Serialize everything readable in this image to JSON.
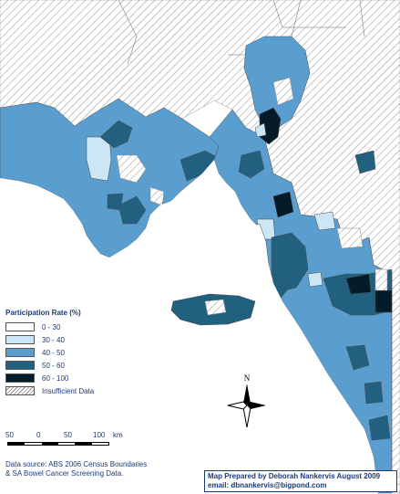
{
  "legend": {
    "title": "Participation Rate (%)",
    "items": [
      {
        "label": "0 - 30",
        "color": "#ffffff"
      },
      {
        "label": "30 - 40",
        "color": "#cde6f5"
      },
      {
        "label": "40 - 50",
        "color": "#5a9dcf"
      },
      {
        "label": "50 - 60",
        "color": "#22607f"
      },
      {
        "label": "60 - 100",
        "color": "#041c2a"
      },
      {
        "label": "Insufficient Data",
        "color": "hatch"
      }
    ]
  },
  "scale_bar": {
    "ticks": [
      "50",
      "0",
      "50",
      "100"
    ],
    "unit": "km"
  },
  "north_arrow": {
    "label": "N"
  },
  "source_note": "Data source: ABS 2006 Census Boundaries & SA Bowel Cancer Screening Data.",
  "credits": {
    "line1": "Map Prepared by Deborah Nankervis August 2009",
    "line2": "email: dbnankervis@bigpond.com"
  },
  "colors": {
    "land_outside": "#ffffff",
    "hatch_line": "#9a9a9a",
    "boundary": "#4a4a4a"
  }
}
